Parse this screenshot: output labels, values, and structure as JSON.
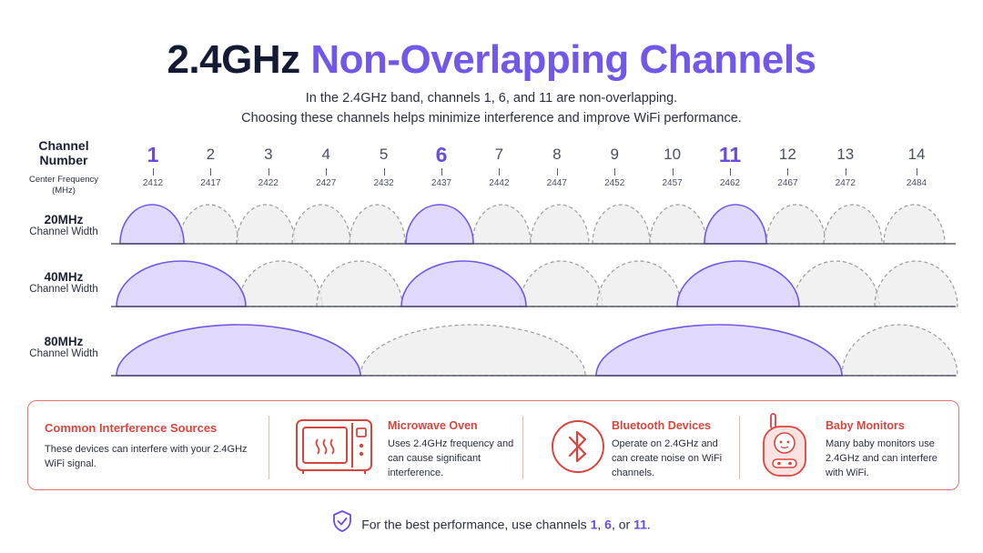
{
  "title": {
    "part1": "2.4GHz",
    "part2": "Non-Overlapping Channels"
  },
  "subtitle": {
    "line1": "In the 2.4GHz band, channels 1, 6, and 11 are non-overlapping.",
    "line2": "Choosing these channels helps minimize interference and improve WiFi performance."
  },
  "header": {
    "channel_label": "Channel Number",
    "freq_label": "Center Frequency (MHz)"
  },
  "channels": [
    {
      "num": "1",
      "freq": "2412",
      "highlight": true
    },
    {
      "num": "2",
      "freq": "2417",
      "highlight": false
    },
    {
      "num": "3",
      "freq": "2422",
      "highlight": false
    },
    {
      "num": "4",
      "freq": "2427",
      "highlight": false
    },
    {
      "num": "5",
      "freq": "2432",
      "highlight": false
    },
    {
      "num": "6",
      "freq": "2437",
      "highlight": true
    },
    {
      "num": "7",
      "freq": "2442",
      "highlight": false
    },
    {
      "num": "8",
      "freq": "2447",
      "highlight": false
    },
    {
      "num": "9",
      "freq": "2452",
      "highlight": false
    },
    {
      "num": "10",
      "freq": "2457",
      "highlight": false
    },
    {
      "num": "11",
      "freq": "2462",
      "highlight": true
    },
    {
      "num": "12",
      "freq": "2467",
      "highlight": false
    },
    {
      "num": "13",
      "freq": "2472",
      "highlight": false
    },
    {
      "num": "14",
      "freq": "2484",
      "highlight": false
    }
  ],
  "rows": [
    {
      "width": "20MHz",
      "label": "Channel Width"
    },
    {
      "width": "40MHz",
      "label": "Channel Width"
    },
    {
      "width": "80MHz",
      "label": "Channel Width"
    }
  ],
  "colors": {
    "accent": "#7357e8",
    "accent_fill": "#ddd3fb",
    "inactive_fill": "#ececec",
    "inactive_stroke": "#9a9a9a",
    "warning": "#d9453d"
  },
  "interference": {
    "title": "Common Interference Sources",
    "text": "These devices can interfere with your 2.4GHz WiFi signal.",
    "devices": [
      {
        "icon": "microwave-icon",
        "title": "Microwave Oven",
        "text": "Uses 2.4GHz frequency and can cause significant interference."
      },
      {
        "icon": "bluetooth-icon",
        "title": "Bluetooth Devices",
        "text": "Operate on 2.4GHz and can create noise on WiFi channels."
      },
      {
        "icon": "baby-monitor-icon",
        "title": "Baby Monitors",
        "text": "Many baby monitors use 2.4GHz and can interfere with WiFi."
      }
    ]
  },
  "footer": {
    "prefix": "For the best performance, use channels",
    "ch1": "1",
    "sep1": ",",
    "ch2": "6",
    "sep2": ", or",
    "ch3": "11",
    "suffix": "."
  }
}
